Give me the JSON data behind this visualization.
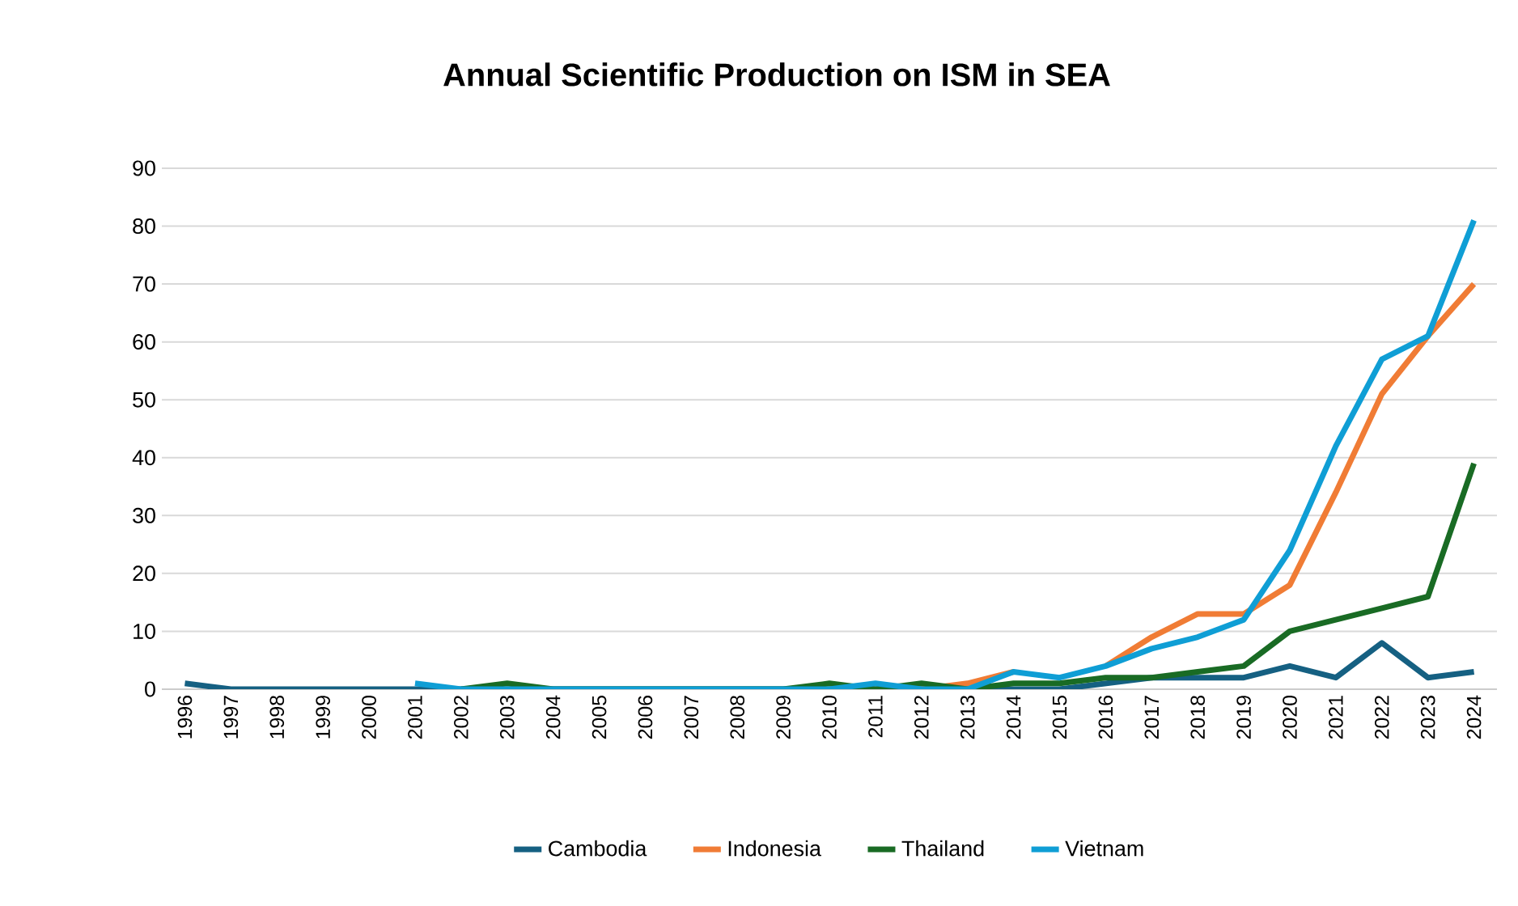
{
  "chart_data": {
    "type": "line",
    "title": "Annual Scientific Production on ISM in SEA",
    "categories": [
      "1996",
      "1997",
      "1998",
      "1999",
      "2000",
      "2001",
      "2002",
      "2003",
      "2004",
      "2005",
      "2006",
      "2007",
      "2008",
      "2009",
      "2010",
      "2011",
      "2012",
      "2013",
      "2014",
      "2015",
      "2016",
      "2017",
      "2018",
      "2019",
      "2020",
      "2021",
      "2022",
      "2023",
      "2024"
    ],
    "series": [
      {
        "name": "Cambodia",
        "color": "#156082",
        "values": [
          1,
          0,
          0,
          0,
          0,
          0,
          0,
          0,
          0,
          0,
          0,
          0,
          0,
          0,
          0,
          0,
          0,
          0,
          0,
          0,
          1,
          2,
          2,
          2,
          4,
          2,
          8,
          2,
          3
        ]
      },
      {
        "name": "Indonesia",
        "color": "#f07c35",
        "values": [
          null,
          null,
          null,
          null,
          null,
          null,
          null,
          null,
          null,
          null,
          null,
          null,
          null,
          null,
          null,
          null,
          0,
          1,
          3,
          null,
          4,
          9,
          13,
          13,
          18,
          34,
          51,
          61,
          70
        ]
      },
      {
        "name": "Thailand",
        "color": "#196b24",
        "values": [
          null,
          null,
          null,
          null,
          null,
          null,
          0,
          1,
          0,
          0,
          0,
          0,
          0,
          0,
          1,
          0,
          1,
          0,
          1,
          1,
          2,
          2,
          3,
          4,
          10,
          12,
          14,
          16,
          39
        ]
      },
      {
        "name": "Vietnam",
        "color": "#0f9ed5",
        "values": [
          null,
          null,
          null,
          null,
          null,
          1,
          0,
          0,
          0,
          0,
          0,
          0,
          0,
          0,
          0,
          1,
          0,
          0,
          3,
          2,
          4,
          7,
          9,
          12,
          24,
          42,
          57,
          61,
          81
        ]
      }
    ],
    "ylim": [
      0,
      90
    ],
    "yticks": [
      0,
      10,
      20,
      30,
      40,
      50,
      60,
      70,
      80,
      90
    ],
    "grid": "y",
    "legend": "bottom",
    "marker": "none",
    "line_style": "solid"
  }
}
